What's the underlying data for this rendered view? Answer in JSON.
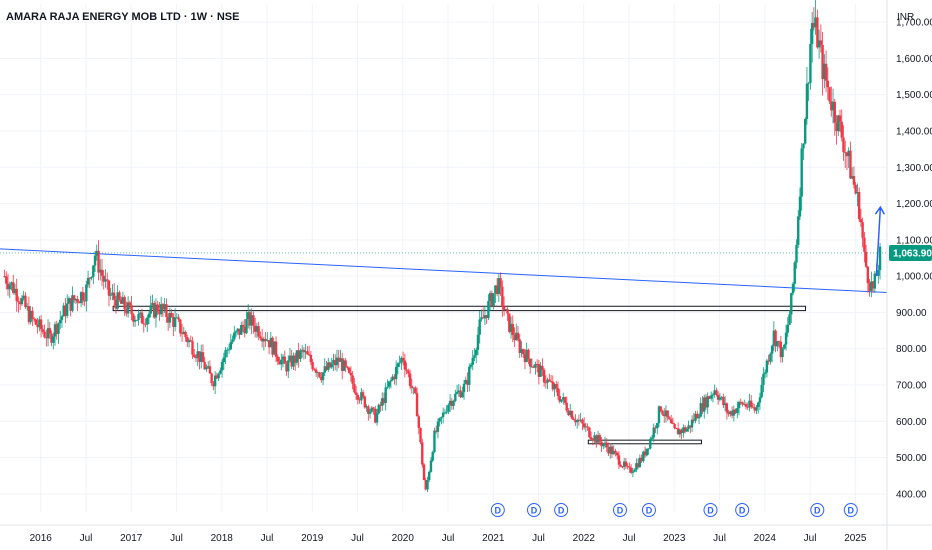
{
  "chart_data": {
    "type": "candlestick",
    "title": "AMARA RAJA ENERGY MOB LTD · 1W · NSE",
    "currency": "INR",
    "last_price": "1,063.90",
    "ylim": [
      350,
      1750
    ],
    "y_ticks": [
      {
        "value": 400,
        "label": "400.00"
      },
      {
        "value": 500,
        "label": "500.00"
      },
      {
        "value": 600,
        "label": "600.00"
      },
      {
        "value": 700,
        "label": "700.00"
      },
      {
        "value": 800,
        "label": "800.00"
      },
      {
        "value": 900,
        "label": "900.00"
      },
      {
        "value": 1000,
        "label": "1,000.00"
      },
      {
        "value": 1100,
        "label": "1,100.00"
      },
      {
        "value": 1200,
        "label": "1,200.00"
      },
      {
        "value": 1300,
        "label": "1,300.00"
      },
      {
        "value": 1400,
        "label": "1,400.00"
      },
      {
        "value": 1500,
        "label": "1,500.00"
      },
      {
        "value": 1600,
        "label": "1,600.00"
      },
      {
        "value": 1700,
        "label": "1,700.00"
      }
    ],
    "x_ticks": [
      {
        "t": 2016.0,
        "label": "2016"
      },
      {
        "t": 2016.5,
        "label": "Jul"
      },
      {
        "t": 2017.0,
        "label": "2017"
      },
      {
        "t": 2017.5,
        "label": "Jul"
      },
      {
        "t": 2018.0,
        "label": "2018"
      },
      {
        "t": 2018.5,
        "label": "Jul"
      },
      {
        "t": 2019.0,
        "label": "2019"
      },
      {
        "t": 2019.5,
        "label": "Jul"
      },
      {
        "t": 2020.0,
        "label": "2020"
      },
      {
        "t": 2020.5,
        "label": "Jul"
      },
      {
        "t": 2021.0,
        "label": "2021"
      },
      {
        "t": 2021.5,
        "label": "Jul"
      },
      {
        "t": 2022.0,
        "label": "2022"
      },
      {
        "t": 2022.5,
        "label": "Jul"
      },
      {
        "t": 2023.0,
        "label": "2023"
      },
      {
        "t": 2023.5,
        "label": "Jul"
      },
      {
        "t": 2024.0,
        "label": "2024"
      },
      {
        "t": 2024.5,
        "label": "Jul"
      },
      {
        "t": 2025.0,
        "label": "2025"
      }
    ],
    "price_path": [
      [
        2015.6,
        1000
      ],
      [
        2015.75,
        950
      ],
      [
        2015.9,
        880
      ],
      [
        2016.1,
        830
      ],
      [
        2016.3,
        920
      ],
      [
        2016.5,
        960
      ],
      [
        2016.6,
        1060
      ],
      [
        2016.75,
        950
      ],
      [
        2016.9,
        920
      ],
      [
        2017.1,
        880
      ],
      [
        2017.3,
        915
      ],
      [
        2017.5,
        870
      ],
      [
        2017.75,
        780
      ],
      [
        2017.9,
        710
      ],
      [
        2018.1,
        820
      ],
      [
        2018.3,
        880
      ],
      [
        2018.5,
        830
      ],
      [
        2018.7,
        750
      ],
      [
        2018.9,
        790
      ],
      [
        2019.1,
        730
      ],
      [
        2019.3,
        770
      ],
      [
        2019.5,
        680
      ],
      [
        2019.7,
        610
      ],
      [
        2019.85,
        700
      ],
      [
        2020.0,
        780
      ],
      [
        2020.15,
        650
      ],
      [
        2020.25,
        400
      ],
      [
        2020.35,
        560
      ],
      [
        2020.5,
        650
      ],
      [
        2020.7,
        700
      ],
      [
        2020.85,
        860
      ],
      [
        2021.0,
        950
      ],
      [
        2021.05,
        980
      ],
      [
        2021.15,
        880
      ],
      [
        2021.3,
        800
      ],
      [
        2021.5,
        740
      ],
      [
        2021.7,
        680
      ],
      [
        2021.9,
        610
      ],
      [
        2022.1,
        560
      ],
      [
        2022.3,
        520
      ],
      [
        2022.5,
        460
      ],
      [
        2022.65,
        500
      ],
      [
        2022.75,
        560
      ],
      [
        2022.85,
        640
      ],
      [
        2023.0,
        570
      ],
      [
        2023.15,
        580
      ],
      [
        2023.3,
        640
      ],
      [
        2023.45,
        690
      ],
      [
        2023.6,
        620
      ],
      [
        2023.75,
        650
      ],
      [
        2023.9,
        630
      ],
      [
        2024.0,
        740
      ],
      [
        2024.1,
        840
      ],
      [
        2024.2,
        780
      ],
      [
        2024.3,
        940
      ],
      [
        2024.35,
        1100
      ],
      [
        2024.42,
        1380
      ],
      [
        2024.47,
        1520
      ],
      [
        2024.52,
        1700
      ],
      [
        2024.58,
        1660
      ],
      [
        2024.65,
        1560
      ],
      [
        2024.75,
        1470
      ],
      [
        2024.85,
        1390
      ],
      [
        2024.95,
        1290
      ],
      [
        2025.05,
        1180
      ],
      [
        2025.1,
        1050
      ],
      [
        2025.15,
        990
      ],
      [
        2025.2,
        960
      ],
      [
        2025.28,
        1063.9
      ]
    ],
    "dividend_marker_label": "D",
    "dividends": [
      2021.05,
      2021.45,
      2021.75,
      2022.4,
      2022.72,
      2023.4,
      2023.75,
      2024.58,
      2024.95
    ]
  }
}
